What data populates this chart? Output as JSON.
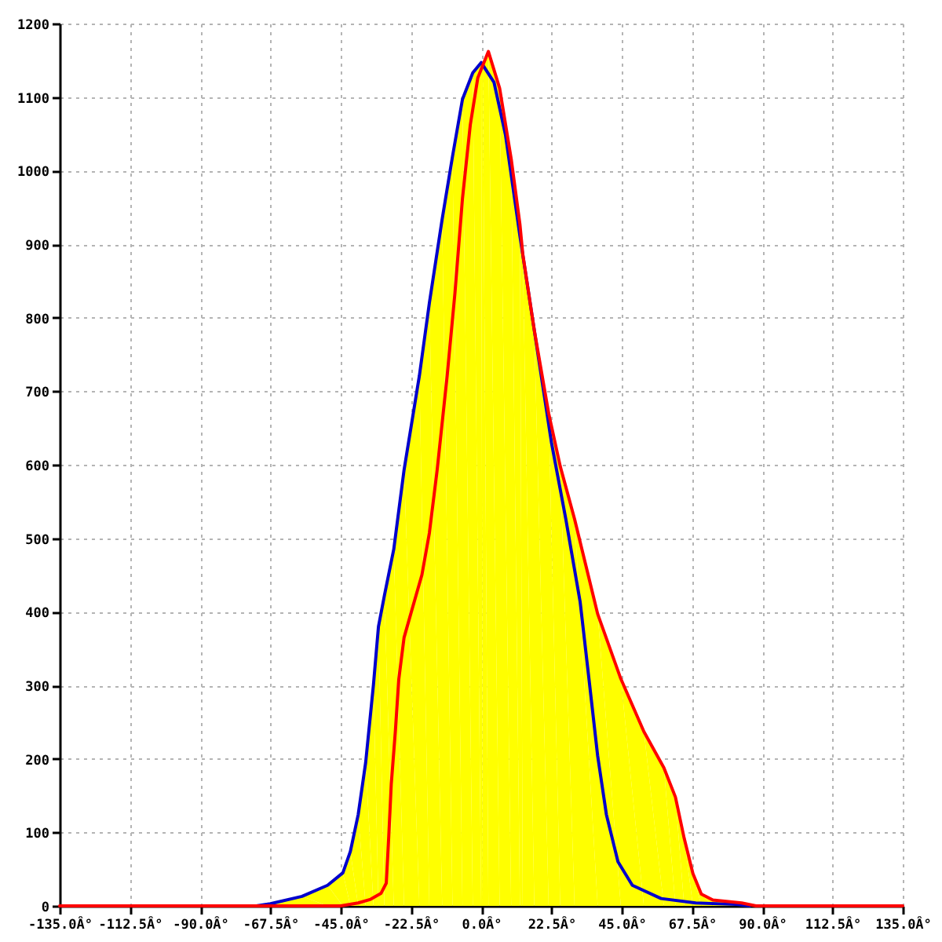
{
  "chart_data": {
    "type": "area",
    "xlim": [
      -135,
      135
    ],
    "xticks": [
      {
        "value": -135,
        "label": "-135.0Â°"
      },
      {
        "value": -112.5,
        "label": "-112.5Â°"
      },
      {
        "value": -90,
        "label": "-90.0Â°"
      },
      {
        "value": -67.5,
        "label": "-67.5Â°"
      },
      {
        "value": -45,
        "label": "-45.0Â°"
      },
      {
        "value": -22.5,
        "label": "-22.5Â°"
      },
      {
        "value": 0,
        "label": "0.0Â°"
      },
      {
        "value": 22.5,
        "label": "22.5Â°"
      },
      {
        "value": 45,
        "label": "45.0Â°"
      },
      {
        "value": 67.5,
        "label": "67.5Â°"
      },
      {
        "value": 90,
        "label": "90.0Â°"
      },
      {
        "value": 112.5,
        "label": "112.5Â°"
      },
      {
        "value": 135,
        "label": "135.0Â°"
      }
    ],
    "ylim": [
      0,
      1200
    ],
    "yticks": [
      0,
      100,
      200,
      300,
      400,
      500,
      600,
      700,
      800,
      900,
      1000,
      1100,
      1200
    ],
    "grid": true,
    "series": [
      {
        "color": "#ffff00",
        "x": [
          -72,
          -67.5,
          -57.4,
          -49.2,
          -44.3,
          -41.9,
          -39.4,
          -37,
          -34.5,
          -32.9,
          -31,
          -28,
          -24.7,
          -19.8,
          -16.6,
          -12.5,
          -9.2,
          -6,
          -2.7,
          0,
          0.5,
          2.3,
          5.9,
          9.6,
          12.4,
          13.3,
          17,
          21.6,
          25.3,
          29.9,
          37.3,
          44.7,
          52.1,
          58.5,
          62.2,
          65,
          67.8,
          70.5,
          74.2,
          83.4,
          88
        ],
        "values": [
          0,
          3,
          13,
          28,
          45,
          74,
          124,
          195,
          301,
          380,
          422,
          485,
          593,
          721,
          820,
          934,
          1019,
          1097,
          1133,
          1147,
          1144,
          1162,
          1112,
          1016,
          927,
          887,
          783,
          670,
          598,
          526,
          397,
          309,
          237,
          188,
          148,
          92,
          44,
          16,
          8,
          4,
          0
        ]
      },
      {
        "type": "line",
        "color": "#0000cc",
        "x": [
          -72,
          -67.5,
          -57.4,
          -49.2,
          -44.3,
          -41.9,
          -39.4,
          -37,
          -34.5,
          -32.9,
          -31,
          -28,
          -24.7,
          -19.8,
          -16.6,
          -12.5,
          -9.2,
          -6,
          -2.7,
          0,
          4.1,
          7.8,
          12.4,
          17,
          22.5,
          27.1,
          31.7,
          34.5,
          37.3,
          40.1,
          43.8,
          48.4,
          57.6,
          68.7,
          81.6,
          86
        ],
        "values": [
          0,
          3,
          13,
          28,
          45,
          74,
          124,
          195,
          301,
          380,
          422,
          485,
          593,
          721,
          820,
          934,
          1019,
          1097,
          1133,
          1147,
          1120,
          1048,
          911,
          783,
          630,
          526,
          413,
          309,
          204,
          124,
          60,
          28,
          10,
          4,
          2,
          0
        ]
      },
      {
        "type": "line",
        "color": "#ff0000",
        "x": [
          -135,
          -45,
          -39.4,
          -35.4,
          -32.1,
          -30.4,
          -29.6,
          -28.8,
          -27.5,
          -26.4,
          -24.7,
          -22.3,
          -19,
          -16.6,
          -14.1,
          -10.9,
          -8.4,
          -6,
          -3.5,
          -1.1,
          2.3,
          5.9,
          9.6,
          12.4,
          13.3,
          17,
          21.6,
          25.3,
          29.9,
          37.3,
          44.7,
          52.1,
          58.5,
          62.2,
          65,
          67.8,
          70.5,
          74.2,
          83.4,
          88,
          135
        ],
        "values": [
          0,
          0,
          4,
          9,
          17,
          31,
          95,
          166,
          237,
          308,
          365,
          401,
          450,
          507,
          593,
          721,
          834,
          962,
          1062,
          1126,
          1162,
          1112,
          1016,
          927,
          887,
          783,
          670,
          598,
          526,
          397,
          309,
          237,
          188,
          148,
          92,
          44,
          16,
          8,
          4,
          0,
          0
        ]
      }
    ]
  }
}
